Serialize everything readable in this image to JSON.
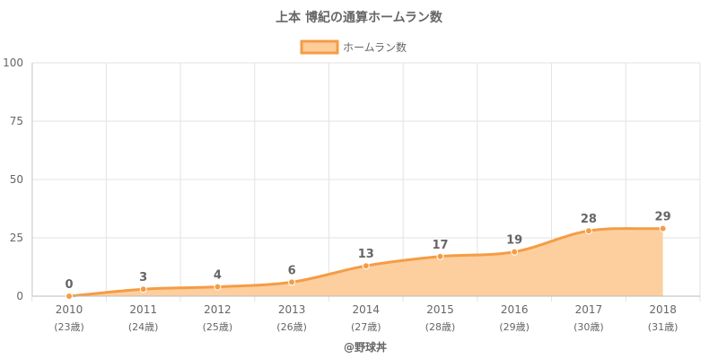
{
  "chart_data": {
    "type": "line",
    "title": "上本 博紀の通算ホームラン数",
    "categories": [
      "2010",
      "2011",
      "2012",
      "2013",
      "2014",
      "2015",
      "2016",
      "2017",
      "2018"
    ],
    "sub_categories": [
      "(23歳)",
      "(24歳)",
      "(25歳)",
      "(26歳)",
      "(27歳)",
      "(28歳)",
      "(29歳)",
      "(30歳)",
      "(31歳)"
    ],
    "series": [
      {
        "name": "ホームラン数",
        "values": [
          0,
          3,
          4,
          6,
          13,
          17,
          19,
          28,
          29
        ]
      }
    ],
    "ylim": [
      0,
      100
    ],
    "yticks": [
      "0",
      "25",
      "50",
      "75",
      "100"
    ],
    "grid": true,
    "legend_position": "top-center",
    "area_fill": true,
    "colors": {
      "line": "#f59c45",
      "fill": "#fdcc9a",
      "text": "#666666",
      "grid": "#e3e3e3"
    }
  },
  "footer": {
    "credit": "@野球丼"
  }
}
